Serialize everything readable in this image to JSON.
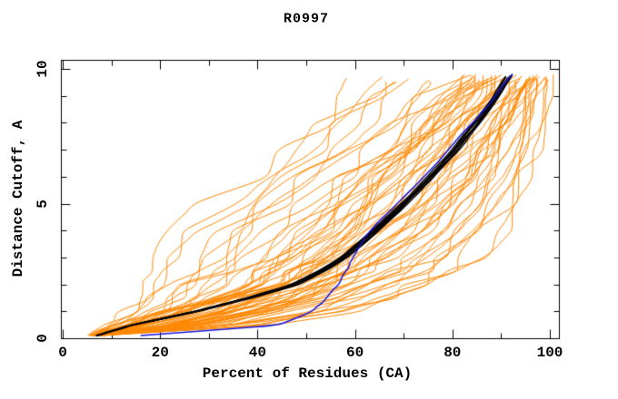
{
  "page": {
    "background": "#ffffff"
  },
  "chart_data": {
    "type": "line",
    "title": "R0997",
    "xlabel": "Percent of Residues (CA)",
    "ylabel": "Distance Cutoff, A",
    "xlim": [
      0,
      100
    ],
    "ylim": [
      0,
      10
    ],
    "x_ticks_major": [
      0,
      20,
      40,
      60,
      80,
      100
    ],
    "x_ticks_minor": [
      10,
      30,
      50,
      70,
      90
    ],
    "y_ticks_major": [
      0,
      5,
      10
    ],
    "y_ticks_minor": [
      1,
      2,
      3,
      4,
      6,
      7,
      8,
      9
    ],
    "grid": false,
    "legend": null,
    "colors": {
      "orange": "#ff8700",
      "black": "#000000",
      "blue": "#1515dd"
    },
    "y_levels": [
      0.12,
      0.5,
      1,
      1.5,
      2,
      2.5,
      3,
      4,
      5,
      6,
      7,
      8,
      9,
      9.7
    ],
    "seed": 20997,
    "series": [
      {
        "name": "curve-group-steep",
        "kind": "fan",
        "color": "orange",
        "count": 14,
        "x_min": [
          5.5,
          9,
          12,
          14,
          16,
          17.5,
          19,
          25,
          31,
          38,
          45,
          52,
          58,
          62
        ],
        "x_max": [
          7.5,
          18,
          28,
          34,
          39,
          43,
          47,
          54,
          60,
          66,
          73,
          80,
          86,
          89
        ],
        "wiggle": 1.2,
        "width": 1
      },
      {
        "name": "curve-group-main",
        "kind": "fan",
        "color": "orange",
        "count": 32,
        "x_min": [
          5.5,
          12,
          20,
          28,
          35,
          40,
          44,
          51,
          57,
          62,
          67,
          72,
          78,
          82
        ],
        "x_max": [
          8,
          28,
          42,
          50,
          56,
          61,
          65,
          72,
          78,
          83,
          87.5,
          91.5,
          95,
          97
        ],
        "wiggle": 1.2,
        "width": 1
      },
      {
        "name": "curve-group-right",
        "kind": "fan",
        "color": "orange",
        "count": 16,
        "x_min": [
          6,
          20,
          34,
          44,
          52,
          58,
          63,
          71,
          77,
          81.5,
          85,
          88,
          90.5,
          92.5
        ],
        "x_max": [
          8.5,
          42,
          60,
          70,
          77,
          82,
          85.5,
          90.5,
          94,
          96,
          97.5,
          98.7,
          99.6,
          100.2
        ],
        "wiggle": 1.1,
        "width": 1
      },
      {
        "name": "curve-bundle-black",
        "kind": "bundle",
        "color": "black",
        "count": 8,
        "x_at_levels": [
          7,
          14,
          27,
          38,
          47.5,
          53,
          57.5,
          64,
          70,
          75.5,
          80.5,
          85,
          89,
          91.5
        ],
        "spread": 0.7,
        "wiggle": 0.35,
        "width": 1.4,
        "top_y": 9.8
      },
      {
        "name": "curve-blue",
        "kind": "single",
        "color": "blue",
        "x_at_levels": [
          16,
          44,
          51,
          54,
          56.5,
          58,
          59.5,
          63,
          68.5,
          74,
          79,
          84,
          88.7,
          92.2
        ],
        "wiggle": 0.5,
        "width": 1.5,
        "top_y": 9.82
      }
    ]
  }
}
